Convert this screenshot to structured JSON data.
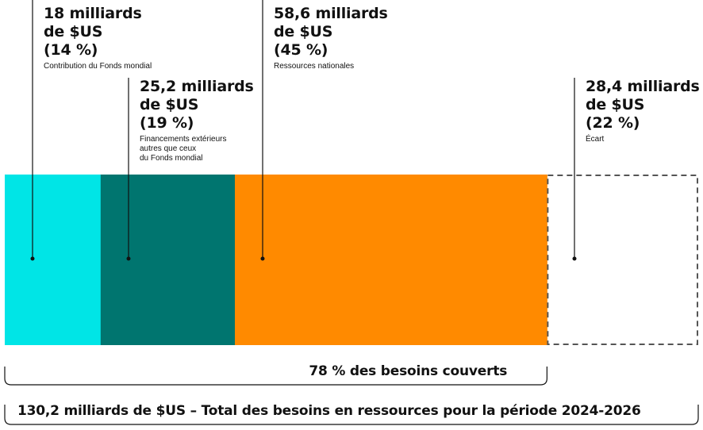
{
  "chart_data": {
    "type": "bar",
    "orientation": "horizontal-stacked",
    "total": 130.2,
    "segments": [
      {
        "value": 18,
        "value_text": "18 milliards de $US\n(14 %)",
        "label": "Contribution du Fonds mondial",
        "color": "#00e5e6",
        "style": "solid"
      },
      {
        "value": 25.2,
        "value_text": "25,2 milliards\nde $US\n(19 %)",
        "label": "Financements extérieurs\nautres que ceux\ndu Fonds mondial",
        "color": "#00756f",
        "style": "solid"
      },
      {
        "value": 58.6,
        "value_text": "58,6 milliards de $US\n(45 %)",
        "label": "Ressources nationales",
        "color": "#ff8a00",
        "style": "solid"
      },
      {
        "value": 28.4,
        "value_text": "28,4 milliards\nde $US\n(22 %)",
        "label": "Écart",
        "color": "#555555",
        "style": "dashed"
      }
    ],
    "covered_text": "78 % des besoins couverts",
    "total_text": "130,2 milliards de $US – Total des besoins en ressources pour la période 2024-2026"
  }
}
